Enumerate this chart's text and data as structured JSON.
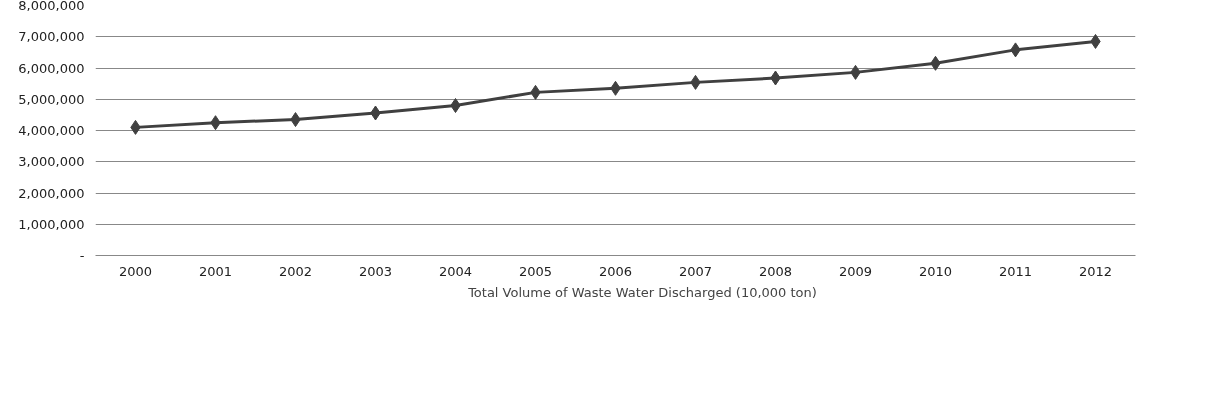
{
  "chart_data": {
    "type": "line",
    "categories": [
      "2000",
      "2001",
      "2002",
      "2003",
      "2004",
      "2005",
      "2006",
      "2007",
      "2008",
      "2009",
      "2010",
      "2011",
      "2012"
    ],
    "series": [
      {
        "name": "Total Volume of Waste Water Discharged (10,000 ton)",
        "color": "#404040",
        "values": [
          4100000,
          4250000,
          4350000,
          4560000,
          4800000,
          5220000,
          5350000,
          5540000,
          5680000,
          5860000,
          6150000,
          6580000,
          6850000
        ]
      }
    ],
    "ylim": [
      0,
      8000000
    ],
    "yticks": [
      {
        "value": 0,
        "label": "-"
      },
      {
        "value": 1000000,
        "label": "1,000,000"
      },
      {
        "value": 2000000,
        "label": "2,000,000"
      },
      {
        "value": 3000000,
        "label": "3,000,000"
      },
      {
        "value": 4000000,
        "label": "4,000,000"
      },
      {
        "value": 5000000,
        "label": "5,000,000"
      },
      {
        "value": 6000000,
        "label": "6,000,000"
      },
      {
        "value": 7000000,
        "label": "7,000,000"
      },
      {
        "value": 8000000,
        "label": "8,000,000"
      }
    ],
    "grid": "y",
    "legend": "bottom",
    "marker": "diamond",
    "line_style": "solid"
  }
}
